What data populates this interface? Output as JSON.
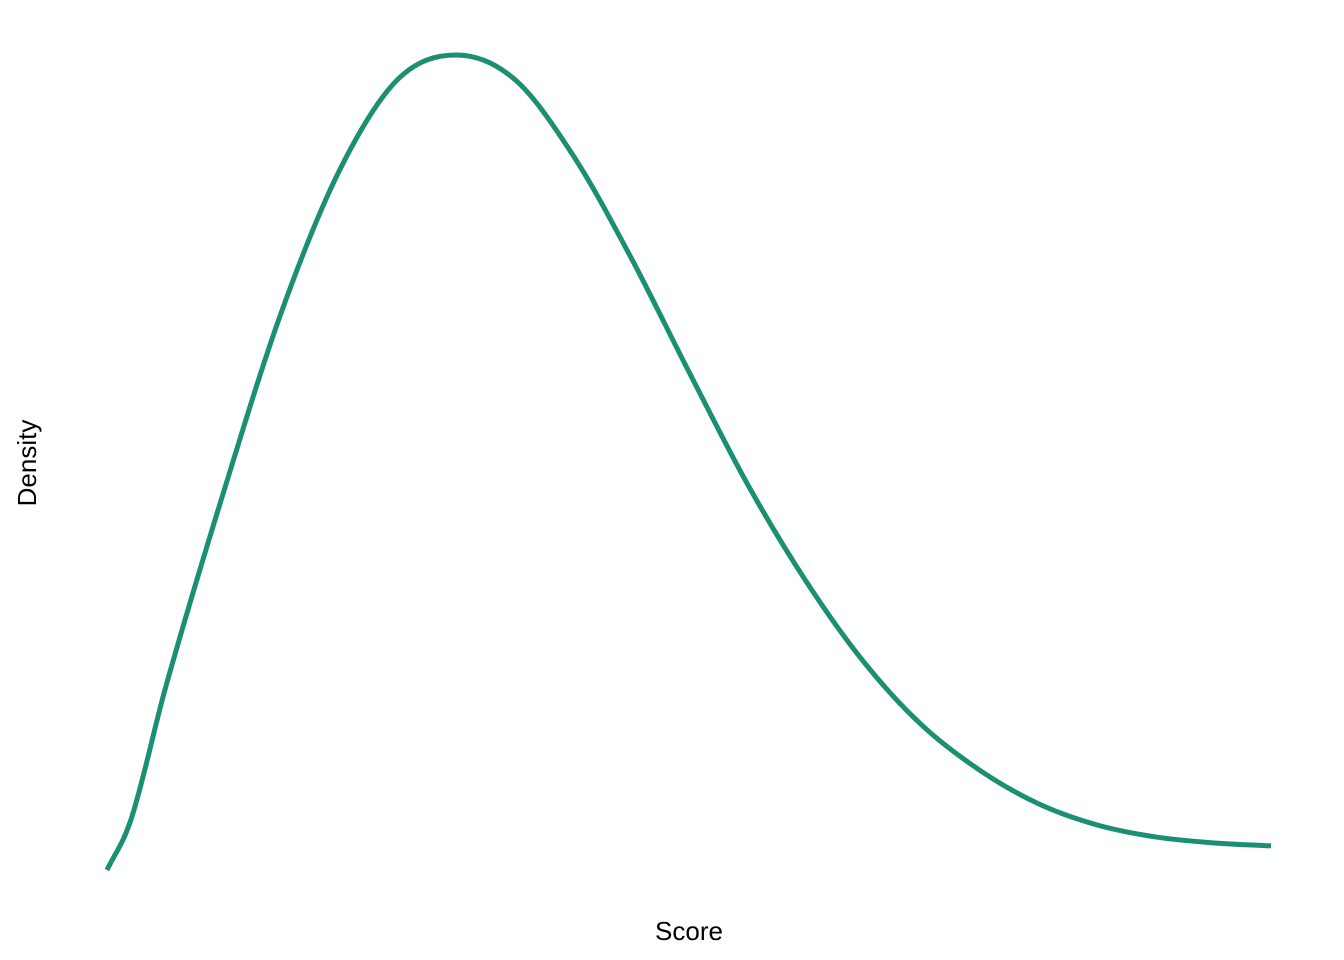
{
  "chart_data": {
    "type": "line",
    "title": "",
    "xlabel": "Score",
    "ylabel": "Density",
    "grid": false,
    "legend": "none",
    "x_ticks_shown": false,
    "y_ticks_shown": false,
    "line_color": "#1b8f71",
    "series": [
      {
        "x": [
          0.0,
          0.02,
          0.05,
          0.1,
          0.15,
          0.2,
          0.25,
          0.3,
          0.35,
          0.4,
          0.45,
          0.5,
          0.55,
          0.6,
          0.65,
          0.7,
          0.75,
          0.8,
          0.85,
          0.9,
          0.95,
          1.0
        ],
        "y": [
          0.0,
          0.016,
          0.06,
          0.125,
          0.185,
          0.232,
          0.262,
          0.27,
          0.262,
          0.237,
          0.203,
          0.165,
          0.128,
          0.096,
          0.069,
          0.048,
          0.033,
          0.022,
          0.015,
          0.011,
          0.009,
          0.008
        ]
      }
    ]
  }
}
